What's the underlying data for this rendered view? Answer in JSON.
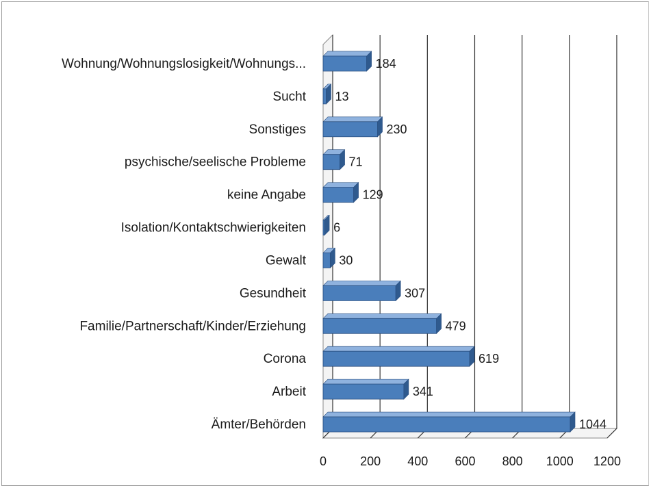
{
  "chart_data": {
    "type": "bar",
    "orientation": "horizontal",
    "style": "3d",
    "categories": [
      "Wohnung/Wohnungslosigkeit/Wohnungs...",
      "Sucht",
      "Sonstiges",
      "psychische/seelische Probleme",
      "keine Angabe",
      "Isolation/Kontaktschwierigkeiten",
      "Gewalt",
      "Gesundheit",
      "Familie/Partnerschaft/Kinder/Erziehung",
      "Corona",
      "Arbeit",
      "Ämter/Behörden"
    ],
    "values": [
      184,
      13,
      230,
      71,
      129,
      6,
      30,
      307,
      479,
      619,
      341,
      1044
    ],
    "xlim": [
      0,
      1200
    ],
    "xticks": [
      0,
      200,
      400,
      600,
      800,
      1000,
      1200
    ],
    "grid": true,
    "legend": "none",
    "bar_color": "#4a7ebb",
    "bar_top_color": "#8fb2de",
    "bar_side_color": "#2f5a8e"
  }
}
